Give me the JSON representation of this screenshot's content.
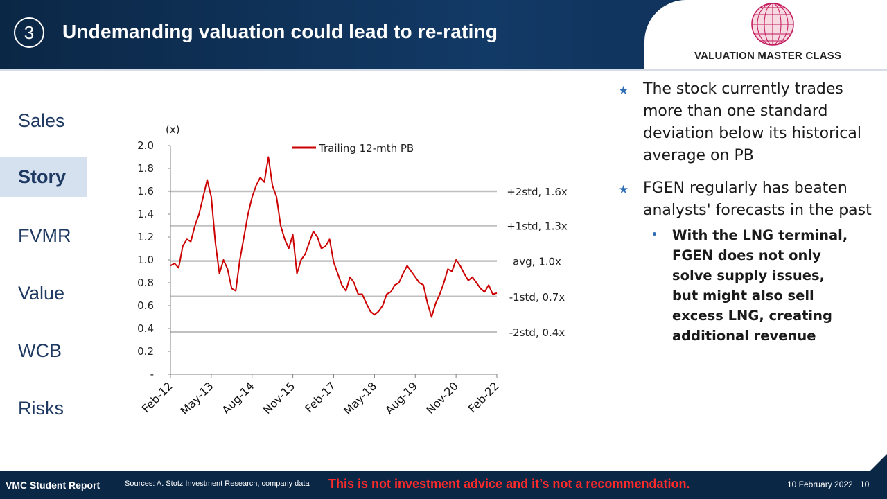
{
  "header": {
    "section_number": "3",
    "title": "Undemanding valuation could lead to re-rating",
    "logo_text": "VALUATION MASTER CLASS"
  },
  "nav": {
    "items": [
      {
        "label": "Sales",
        "active": false
      },
      {
        "label": "Story",
        "active": true
      },
      {
        "label": "FVMR",
        "active": false
      },
      {
        "label": "Value",
        "active": false
      },
      {
        "label": "WCB",
        "active": false
      },
      {
        "label": "Risks",
        "active": false
      }
    ]
  },
  "bullets": {
    "items": [
      "The stock currently trades more than one standard deviation below its historical average on PB",
      "FGEN regularly has beaten analysts' forecasts in the past"
    ],
    "sub_item": "With the LNG terminal, FGEN does not only solve supply issues, but might also sell excess LNG, creating additional revenue"
  },
  "footer": {
    "left": "VMC Student Report",
    "sources": "Sources: A. Stotz Investment Research, company data",
    "warning": "This is not investment advice and it’s not a recommendation.",
    "date": "10 February 2022",
    "page": "10"
  },
  "colors": {
    "navy": "#0b2746",
    "series": "#cc0000",
    "reference_line": "#bfbfbf",
    "warning": "#ff2a2a",
    "active_nav": "#d6e1f0"
  },
  "chart_data": {
    "type": "line",
    "unit_label": "(x)",
    "ylim": [
      0,
      2.0
    ],
    "yticks": [
      0,
      0.2,
      0.4,
      0.6,
      0.8,
      1.0,
      1.2,
      1.4,
      1.6,
      1.8,
      2.0
    ],
    "ytick_labels": [
      "-",
      "0.2",
      "0.4",
      "0.6",
      "0.8",
      "1.0",
      "1.2",
      "1.4",
      "1.6",
      "1.8",
      "2.0"
    ],
    "xtick_labels": [
      "Feb-12",
      "May-13",
      "Aug-14",
      "Nov-15",
      "Feb-17",
      "May-18",
      "Aug-19",
      "Nov-20",
      "Feb-22"
    ],
    "legend": "top-center",
    "series": [
      {
        "name": "Trailing 12-mth PB",
        "x": [
          0,
          0.1,
          0.2,
          0.3,
          0.4,
          0.5,
          0.6,
          0.7,
          0.8,
          0.9,
          1.0,
          1.1,
          1.2,
          1.3,
          1.4,
          1.5,
          1.6,
          1.7,
          1.8,
          1.9,
          2.0,
          2.1,
          2.2,
          2.3,
          2.4,
          2.5,
          2.6,
          2.7,
          2.8,
          2.9,
          3.0,
          3.1,
          3.2,
          3.3,
          3.4,
          3.5,
          3.6,
          3.7,
          3.8,
          3.9,
          4.0,
          4.1,
          4.2,
          4.3,
          4.4,
          4.5,
          4.6,
          4.7,
          4.8,
          4.9,
          5.0,
          5.1,
          5.2,
          5.3,
          5.4,
          5.5,
          5.6,
          5.7,
          5.8,
          5.9,
          6.0,
          6.1,
          6.2,
          6.3,
          6.4,
          6.5,
          6.6,
          6.7,
          6.8,
          6.9,
          7.0,
          7.1,
          7.2,
          7.3,
          7.4,
          7.5,
          7.6,
          7.7,
          7.8,
          7.9,
          8.0
        ],
        "y": [
          0.95,
          0.97,
          0.93,
          1.12,
          1.18,
          1.16,
          1.3,
          1.4,
          1.55,
          1.7,
          1.55,
          1.15,
          0.88,
          1.0,
          0.92,
          0.75,
          0.73,
          1.0,
          1.2,
          1.4,
          1.55,
          1.65,
          1.72,
          1.68,
          1.9,
          1.65,
          1.55,
          1.3,
          1.18,
          1.1,
          1.22,
          0.88,
          1.0,
          1.05,
          1.15,
          1.25,
          1.2,
          1.1,
          1.12,
          1.18,
          0.98,
          0.88,
          0.78,
          0.73,
          0.85,
          0.8,
          0.7,
          0.7,
          0.62,
          0.55,
          0.52,
          0.55,
          0.6,
          0.7,
          0.72,
          0.78,
          0.8,
          0.88,
          0.95,
          0.9,
          0.85,
          0.8,
          0.78,
          0.62,
          0.5,
          0.62,
          0.7,
          0.8,
          0.92,
          0.9,
          1.0,
          0.95,
          0.88,
          0.82,
          0.85,
          0.8,
          0.75,
          0.72,
          0.78,
          0.7,
          0.71
        ]
      }
    ],
    "reference_lines": [
      {
        "label": "+2std, 1.6x",
        "value": 1.6
      },
      {
        "label": "+1std, 1.3x",
        "value": 1.3
      },
      {
        "label": "avg, 1.0x",
        "value": 0.99
      },
      {
        "label": "-1std, 0.7x",
        "value": 0.68
      },
      {
        "label": "-2std, 0.4x",
        "value": 0.37
      }
    ]
  }
}
